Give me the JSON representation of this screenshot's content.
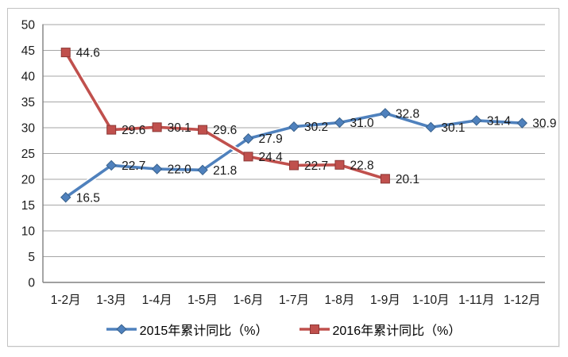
{
  "chart_data": {
    "type": "line",
    "categories": [
      "1-2月",
      "1-3月",
      "1-4月",
      "1-5月",
      "1-6月",
      "1-7月",
      "1-8月",
      "1-9月",
      "1-10月",
      "1-11月",
      "1-12月"
    ],
    "series": [
      {
        "name": "2015年累计同比（%）",
        "values": [
          16.5,
          22.7,
          22.0,
          21.8,
          27.9,
          30.2,
          31.0,
          32.8,
          30.1,
          31.4,
          30.9
        ],
        "color": "#4F81BD",
        "marker": "diamond",
        "marker_edge": "#38618C"
      },
      {
        "name": "2016年累计同比（%）",
        "values": [
          44.6,
          29.6,
          30.1,
          29.6,
          24.4,
          22.7,
          22.8,
          20.1
        ],
        "color": "#C0504D",
        "marker": "square",
        "marker_edge": "#8C3836"
      }
    ],
    "title": "",
    "xlabel": "",
    "ylabel": "",
    "ylim": [
      0,
      50
    ],
    "ytick_step": 5,
    "ytick_labels": [
      "0",
      "5",
      "10",
      "15",
      "20",
      "25",
      "30",
      "35",
      "40",
      "45",
      "50"
    ],
    "grid": "horizontal",
    "legend_position": "bottom",
    "data_labels": true,
    "style": {
      "gridline_color": "#A6A6A6",
      "axis_color": "#808080",
      "text_color": "#1a1a1a",
      "casing_color": "#FFFFFF",
      "frame_border_color": "#C3C3C3"
    }
  }
}
